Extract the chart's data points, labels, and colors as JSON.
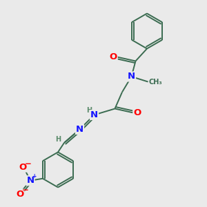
{
  "bg_color": "#eaeaea",
  "bond_color": "#3a6b50",
  "N_color": "#1414ff",
  "O_color": "#ff0000",
  "H_color": "#5a8a6a",
  "lw": 1.4,
  "fs": 8.5,
  "xlim": [
    0,
    10
  ],
  "ylim": [
    0,
    10
  ]
}
